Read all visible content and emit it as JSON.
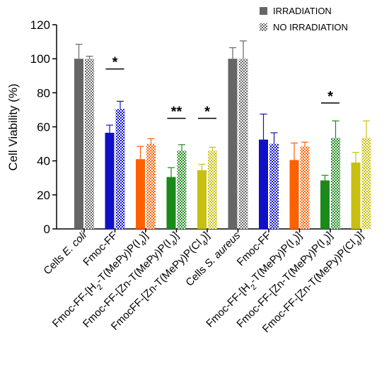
{
  "chart_data": {
    "type": "bar",
    "ylabel": "Cell Viability (%)",
    "ylim": [
      0,
      120
    ],
    "yticks": [
      0,
      20,
      40,
      60,
      80,
      100,
      120
    ],
    "grid": false,
    "legend_position": "top-right",
    "categories": [
      "Cells E. coli",
      "Fmoc-FF",
      "Fmoc-FF-[H2-T(MePy)P(I4)]",
      "Fmoc-FF-[Zn-T(MePy)P(I4)]",
      "FmocFF-[Zn-T(MePy)P(Cl4)]",
      "Cells S. aureus",
      "Fmoc-FF",
      "Fmoc-FF-[H2-T(MePy)P(I4)]",
      "Fmoc-FF-[Zn-T(MePy)P(I4)]",
      "Fmoc-FF-[Zn-T(MePy)P(Cl4)]"
    ],
    "group_colors": [
      "#666666",
      "#1010c8",
      "#ff6000",
      "#1a8a1a",
      "#c8c010",
      "#666666",
      "#1010c8",
      "#ff6000",
      "#1a8a1a",
      "#c8c010"
    ],
    "series": [
      {
        "name": "IRRADIATION",
        "pattern": "solid",
        "values": [
          100,
          56.5,
          41,
          30.5,
          34.5,
          100,
          52.5,
          40.5,
          28.5,
          39
        ],
        "errors": [
          8.5,
          4.5,
          7.5,
          5.5,
          3.5,
          6.5,
          15,
          10,
          3,
          6
        ]
      },
      {
        "name": "NO IRRADIATION",
        "pattern": "checkered",
        "values": [
          100,
          70.5,
          50,
          46,
          46,
          100,
          50,
          48.5,
          53.5,
          53.5
        ],
        "errors": [
          1.5,
          4.5,
          3,
          3.5,
          2,
          10.5,
          6.5,
          2.5,
          10,
          10
        ]
      }
    ],
    "annotations": [
      {
        "label": "*",
        "group": 1,
        "y": 94
      },
      {
        "label": "**",
        "group": 3,
        "y": 65
      },
      {
        "label": "*",
        "group": 4,
        "y": 65
      },
      {
        "label": "*",
        "group": 8,
        "y": 74
      }
    ]
  }
}
